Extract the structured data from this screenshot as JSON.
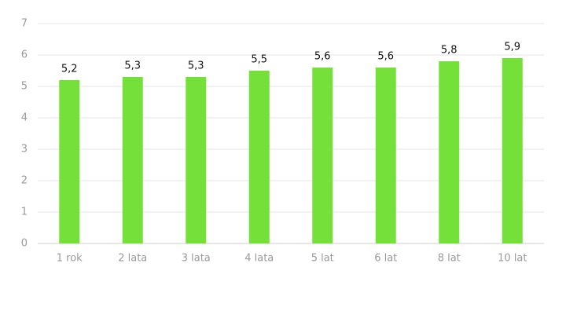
{
  "chart_data": {
    "type": "bar",
    "categories": [
      "1 rok",
      "2 lata",
      "3 lata",
      "4 lata",
      "5 lat",
      "6 lat",
      "8 lat",
      "10 lat"
    ],
    "values": [
      5.2,
      5.3,
      5.3,
      5.5,
      5.6,
      5.6,
      5.8,
      5.9
    ],
    "value_labels": [
      "5,2",
      "5,3",
      "5,3",
      "5,5",
      "5,6",
      "5,6",
      "5,8",
      "5,9"
    ],
    "color": "#76e03a",
    "ylim": [
      0,
      7
    ],
    "yticks": [
      0,
      1,
      2,
      3,
      4,
      5,
      6,
      7
    ],
    "grid": true
  }
}
